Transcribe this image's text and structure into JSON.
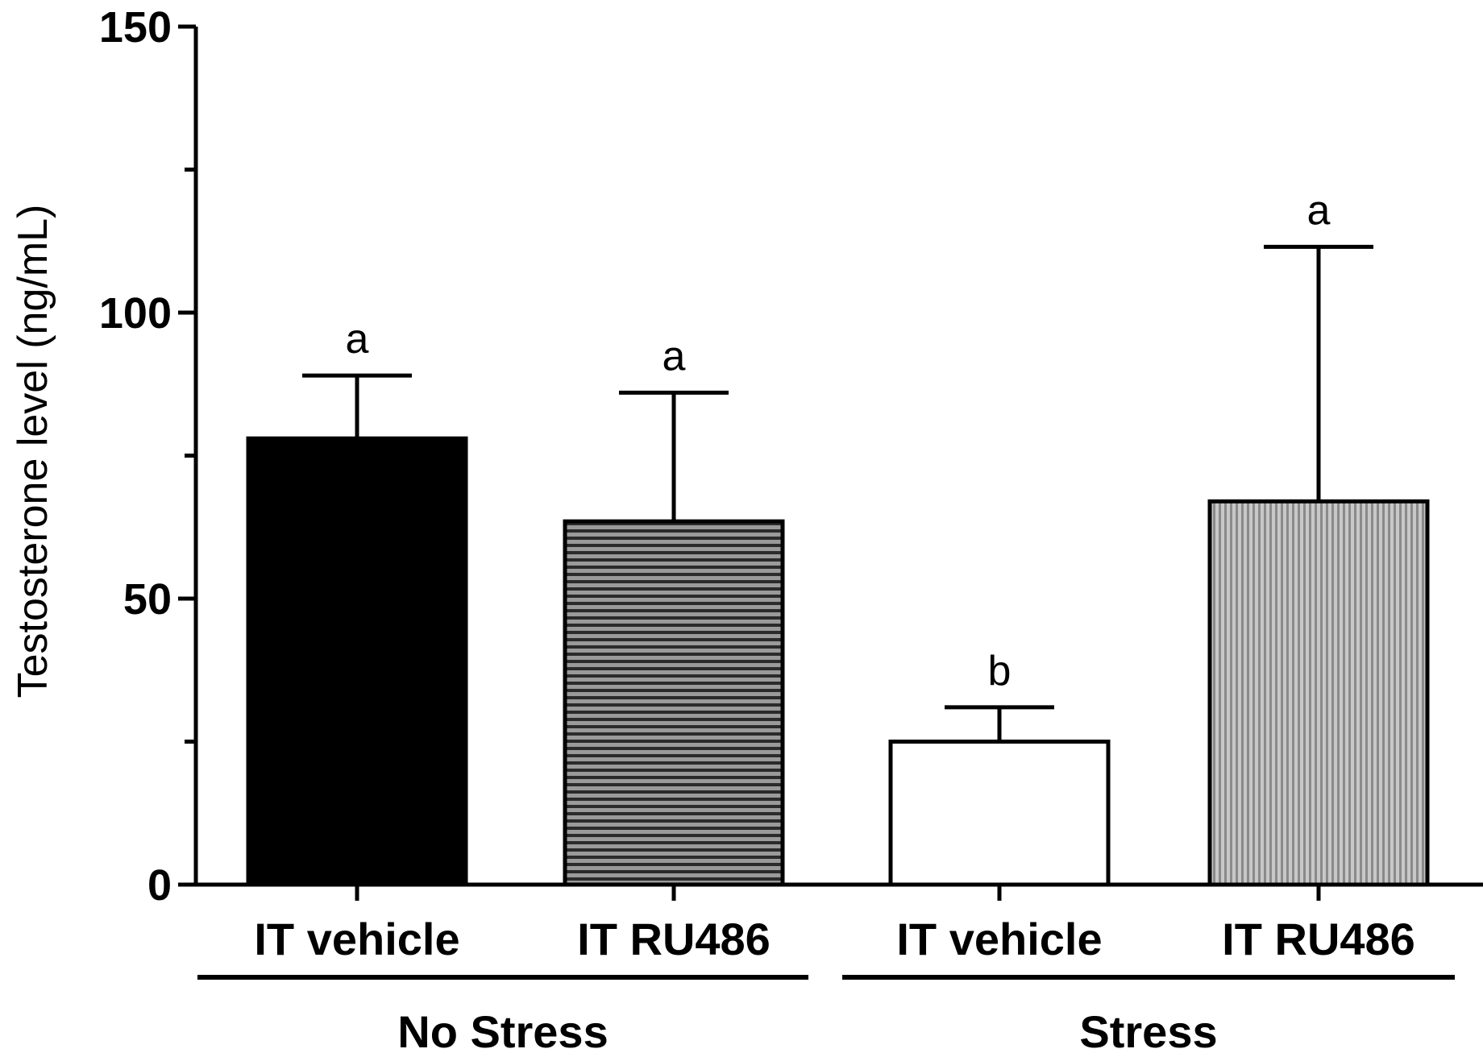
{
  "chart_data": {
    "type": "bar",
    "title": "",
    "ylabel": "Testosterone level (ng/mL)",
    "xlabel": "",
    "ylim": [
      0,
      150
    ],
    "yticks": [
      0,
      50,
      100,
      150
    ],
    "categories": [
      "IT vehicle",
      "IT RU486",
      "IT vehicle",
      "IT RU486"
    ],
    "groups": [
      {
        "label": "No Stress",
        "members": [
          0,
          1
        ]
      },
      {
        "label": "Stress",
        "members": [
          2,
          3
        ]
      }
    ],
    "values": [
      78,
      63.5,
      25,
      67
    ],
    "errors": [
      11,
      22.5,
      6,
      44.5
    ],
    "significance": [
      "a",
      "a",
      "b",
      "a"
    ],
    "fills": [
      "black",
      "horizontal-stripes",
      "white",
      "vertical-stripes"
    ],
    "colors": {
      "solid": "#000000",
      "stripe_dark": "#2b2b2b",
      "stripe_light": "#9a9a9a",
      "vstripe_dark": "#8a8a8a",
      "vstripe_light": "#c8c8c8",
      "white": "#ffffff"
    }
  }
}
